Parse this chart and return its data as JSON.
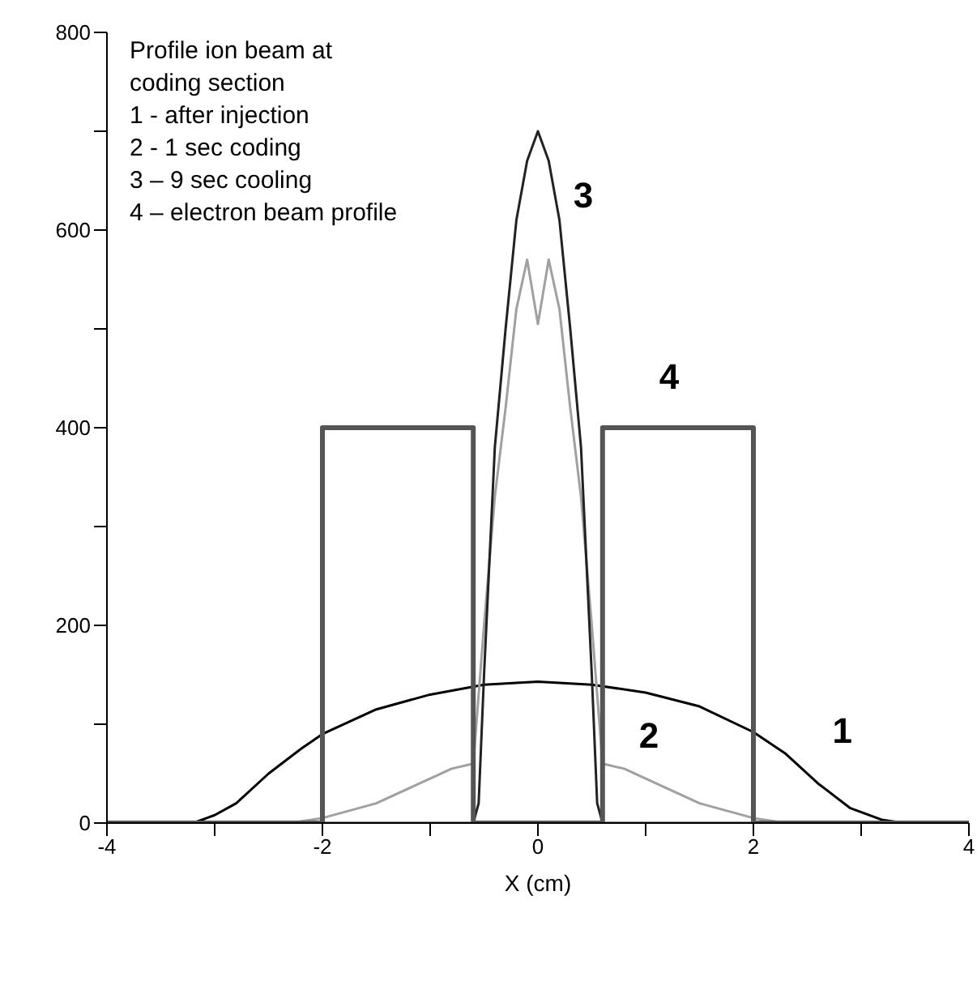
{
  "chart_data": {
    "type": "line",
    "xlabel": "X (cm)",
    "annotations": [
      "Profile ion beam at",
      "coding section",
      "1 - after injection",
      "2 -   1 sec coding",
      "3 – 9 sec cooling",
      "4 – electron beam profile"
    ],
    "xlim": [
      -4,
      4
    ],
    "xticks": [
      -4,
      {
        "value": -3,
        "label": null
      },
      -2,
      {
        "value": -1,
        "label": null
      },
      0,
      {
        "value": 1,
        "label": null
      },
      2,
      {
        "value": 3,
        "label": null
      },
      4
    ],
    "ylim": [
      0,
      800
    ],
    "yticks": [
      0,
      {
        "value": 100,
        "label": null
      },
      200,
      {
        "value": 300,
        "label": null
      },
      400,
      {
        "value": 500,
        "label": null
      },
      600,
      {
        "value": 700,
        "label": null
      },
      800
    ],
    "grid": false,
    "legend": false,
    "marker": "none",
    "line_style": "solid",
    "series": [
      {
        "name": "1",
        "color": "#000000",
        "x": [
          -4,
          -3.2,
          -3,
          -2.8,
          -2.5,
          -2.2,
          -2,
          -1.5,
          -1,
          -0.5,
          0,
          0.5,
          1,
          1.5,
          2,
          2.3,
          2.6,
          2.9,
          3.2,
          3.4,
          4
        ],
        "values": [
          0,
          0,
          8,
          20,
          50,
          75,
          90,
          115,
          130,
          140,
          143,
          140,
          132,
          118,
          92,
          70,
          40,
          15,
          3,
          0,
          0
        ]
      },
      {
        "name": "2",
        "color": "#a0a0a0",
        "x": [
          -4,
          -2.3,
          -2,
          -1.5,
          -1,
          -0.8,
          -0.6,
          -0.5,
          -0.4,
          -0.3,
          -0.2,
          -0.1,
          0,
          0.1,
          0.2,
          0.3,
          0.4,
          0.5,
          0.6,
          0.8,
          1,
          1.5,
          2,
          2.3,
          4
        ],
        "values": [
          0,
          0,
          5,
          20,
          45,
          55,
          60,
          200,
          330,
          420,
          520,
          570,
          505,
          570,
          520,
          420,
          330,
          200,
          60,
          55,
          45,
          20,
          5,
          0,
          0
        ]
      },
      {
        "name": "3",
        "color": "#222222",
        "x": [
          -4,
          -0.6,
          -0.55,
          -0.5,
          -0.4,
          -0.3,
          -0.2,
          -0.1,
          0,
          0.1,
          0.2,
          0.3,
          0.4,
          0.5,
          0.55,
          0.6,
          4
        ],
        "values": [
          0,
          0,
          20,
          150,
          380,
          500,
          610,
          670,
          700,
          670,
          610,
          500,
          380,
          150,
          20,
          0,
          0
        ]
      },
      {
        "name": "4",
        "color": "#555555",
        "x": [
          -4,
          -2,
          -2,
          -0.6,
          -0.6,
          0.6,
          0.6,
          2,
          2,
          4
        ],
        "values": [
          0,
          0,
          400,
          400,
          0,
          0,
          400,
          400,
          0,
          0
        ]
      }
    ]
  }
}
